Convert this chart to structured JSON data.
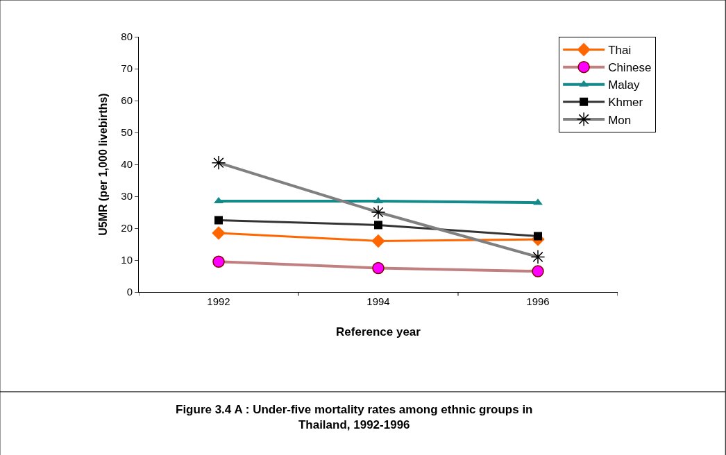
{
  "chart_data": {
    "type": "line",
    "title": "Figure 3.4 A : Under-five mortality rates among ethnic groups in Thailand, 1992-1996",
    "xlabel": "Reference year",
    "ylabel": "U5MR (per 1,000 livebirths)",
    "categories": [
      "1992",
      "1994",
      "1996"
    ],
    "series": [
      {
        "name": "Thai",
        "color": "#ff6600",
        "marker": "diamond",
        "values": [
          18.5,
          16,
          16.5
        ]
      },
      {
        "name": "Chinese",
        "color": "#c08080",
        "marker": "circle",
        "values": [
          9.5,
          7.5,
          6.5
        ]
      },
      {
        "name": "Malay",
        "color": "#158a8a",
        "marker": "triangle",
        "values": [
          28.5,
          28.5,
          28
        ]
      },
      {
        "name": "Khmer",
        "color": "#333333",
        "marker": "square",
        "values": [
          22.5,
          21,
          17.5
        ]
      },
      {
        "name": "Mon",
        "color": "#808080",
        "marker": "cross",
        "values": [
          40.5,
          25,
          11
        ]
      }
    ],
    "ylim": [
      0,
      80
    ],
    "yticks": [
      0,
      10,
      20,
      30,
      40,
      50,
      60,
      70,
      80
    ],
    "grid": false,
    "legend": "top right"
  }
}
